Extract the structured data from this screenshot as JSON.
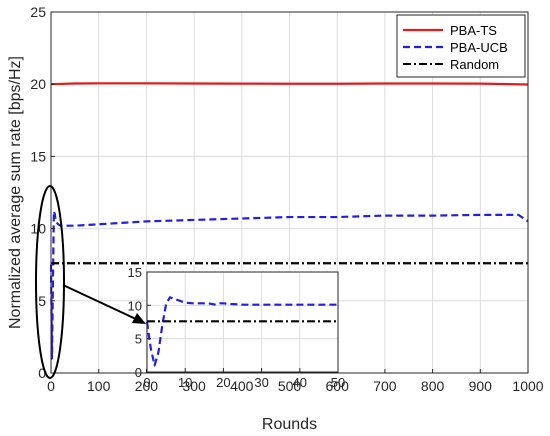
{
  "chart_data": [
    {
      "type": "line",
      "xlabel": "Rounds",
      "ylabel": "Normalized average sum rate [bps/Hz]",
      "xlim": [
        0,
        1000
      ],
      "ylim": [
        0,
        25
      ],
      "xticks": [
        0,
        100,
        200,
        300,
        400,
        500,
        600,
        700,
        800,
        900,
        1000
      ],
      "yticks": [
        0,
        5,
        10,
        15,
        20,
        25
      ],
      "grid": true,
      "legend_position": "top-right",
      "series": [
        {
          "name": "PBA-TS",
          "color": "#e41a1c",
          "style": "solid",
          "x": [
            0,
            50,
            100,
            200,
            300,
            400,
            500,
            600,
            700,
            800,
            900,
            1000
          ],
          "y": [
            20.0,
            20.05,
            20.06,
            20.06,
            20.05,
            20.04,
            20.03,
            20.03,
            20.05,
            20.05,
            20.04,
            19.98
          ]
        },
        {
          "name": "PBA-UCB",
          "color": "#1f1fe6",
          "style": "dashed",
          "x": [
            0,
            2,
            6,
            8,
            10,
            15,
            20,
            50,
            100,
            200,
            300,
            400,
            500,
            600,
            700,
            800,
            900,
            980,
            1000
          ],
          "y": [
            7.5,
            1.0,
            11.2,
            11.0,
            10.5,
            10.3,
            10.2,
            10.2,
            10.3,
            10.5,
            10.6,
            10.7,
            10.8,
            10.8,
            10.9,
            10.9,
            10.95,
            10.95,
            10.5
          ]
        },
        {
          "name": "Random",
          "color": "#000000",
          "style": "dashdot",
          "x": [
            0,
            1000
          ],
          "y": [
            7.6,
            7.6
          ]
        }
      ]
    },
    {
      "type": "line",
      "xlim": [
        0,
        50
      ],
      "ylim": [
        0,
        15
      ],
      "xticks": [
        0,
        10,
        20,
        30,
        40,
        50
      ],
      "yticks": [
        0,
        5,
        10,
        15
      ],
      "grid": true,
      "series": [
        {
          "name": "PBA-UCB",
          "color": "#1f1fe6",
          "style": "dashed",
          "x": [
            0,
            1,
            2,
            3,
            4,
            5,
            6,
            7,
            8,
            9,
            10,
            12,
            14,
            16,
            18,
            19,
            20,
            22,
            25,
            30,
            35,
            40,
            45,
            50
          ],
          "y": [
            7.5,
            3.5,
            1.0,
            3.0,
            7.0,
            10.2,
            11.2,
            11.0,
            10.8,
            10.6,
            10.4,
            10.3,
            10.3,
            10.3,
            10.1,
            10.3,
            10.3,
            10.2,
            10.1,
            10.1,
            10.1,
            10.1,
            10.1,
            10.1
          ]
        },
        {
          "name": "Random",
          "color": "#000000",
          "style": "dashdot",
          "x": [
            0,
            50
          ],
          "y": [
            7.6,
            7.6
          ]
        }
      ]
    }
  ]
}
